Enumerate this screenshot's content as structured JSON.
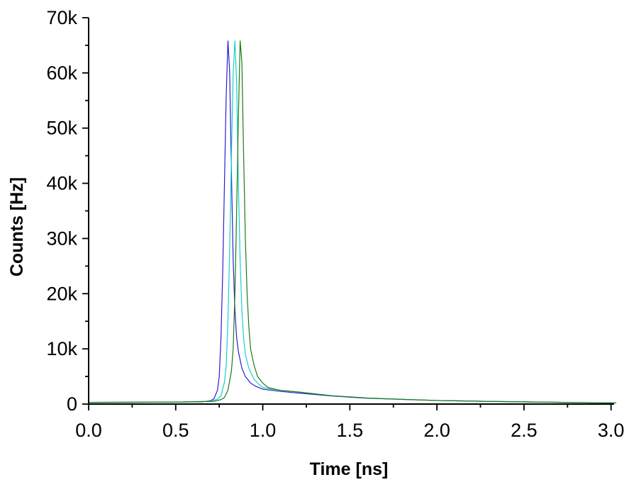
{
  "chart_data": {
    "type": "line",
    "title": "",
    "xlabel": "Time [ns]",
    "ylabel": "Counts [Hz]",
    "xlim": [
      0,
      3.0
    ],
    "ylim": [
      0,
      70000
    ],
    "x_ticks": [
      0.0,
      0.5,
      1.0,
      1.5,
      2.0,
      2.5,
      3.0
    ],
    "x_tick_labels": [
      "0.0",
      "0.5",
      "1.0",
      "1.5",
      "2.0",
      "2.5",
      "3.0"
    ],
    "y_ticks": [
      0,
      10000,
      20000,
      30000,
      40000,
      50000,
      60000,
      70000
    ],
    "y_tick_labels": [
      "0",
      "10k",
      "20k",
      "30k",
      "40k",
      "50k",
      "60k",
      "70k"
    ],
    "grid": false,
    "legend": "none",
    "series": [
      {
        "color": "#2a1fd0",
        "x": [
          0.0,
          0.5,
          0.65,
          0.7,
          0.72,
          0.74,
          0.75,
          0.76,
          0.77,
          0.78,
          0.79,
          0.8,
          0.81,
          0.82,
          0.83,
          0.84,
          0.85,
          0.86,
          0.87,
          0.88,
          0.9,
          0.93,
          0.96,
          1.0,
          1.1,
          1.2,
          1.4,
          1.6,
          1.8,
          2.0,
          2.3,
          2.6,
          3.03
        ],
        "y": [
          300,
          350,
          400,
          600,
          1000,
          2500,
          5000,
          12000,
          24000,
          40000,
          56000,
          65800,
          60000,
          42000,
          26000,
          17000,
          12000,
          9500,
          8000,
          6500,
          5000,
          3800,
          3200,
          2700,
          2300,
          2000,
          1450,
          1050,
          850,
          650,
          480,
          350,
          200
        ]
      },
      {
        "color": "#16d0d0",
        "x": [
          0.0,
          0.5,
          0.7,
          0.74,
          0.76,
          0.78,
          0.79,
          0.8,
          0.81,
          0.82,
          0.83,
          0.84,
          0.85,
          0.86,
          0.87,
          0.88,
          0.89,
          0.9,
          0.92,
          0.95,
          0.98,
          1.0,
          1.05,
          1.1,
          1.2,
          1.4,
          1.6,
          1.8,
          2.0,
          2.3,
          2.6,
          3.03
        ],
        "y": [
          300,
          350,
          500,
          900,
          1500,
          4000,
          7000,
          15000,
          28000,
          45000,
          60000,
          65800,
          58000,
          40000,
          26000,
          17000,
          12000,
          9000,
          6500,
          4500,
          3500,
          3000,
          2700,
          2500,
          2200,
          1500,
          1100,
          850,
          650,
          480,
          350,
          200
        ]
      },
      {
        "color": "#1e7a14",
        "x": [
          0.0,
          0.5,
          0.72,
          0.76,
          0.78,
          0.8,
          0.82,
          0.83,
          0.84,
          0.85,
          0.86,
          0.87,
          0.88,
          0.89,
          0.9,
          0.91,
          0.92,
          0.93,
          0.95,
          0.97,
          1.0,
          1.03,
          1.07,
          1.1,
          1.2,
          1.4,
          1.6,
          1.8,
          2.0,
          2.3,
          2.6,
          3.03
        ],
        "y": [
          300,
          350,
          500,
          800,
          1200,
          2500,
          6000,
          10000,
          20000,
          35000,
          52000,
          65800,
          62000,
          45000,
          30000,
          20000,
          14000,
          10000,
          7000,
          5000,
          3800,
          3000,
          2700,
          2500,
          2200,
          1500,
          1100,
          850,
          650,
          480,
          350,
          200
        ]
      }
    ]
  }
}
